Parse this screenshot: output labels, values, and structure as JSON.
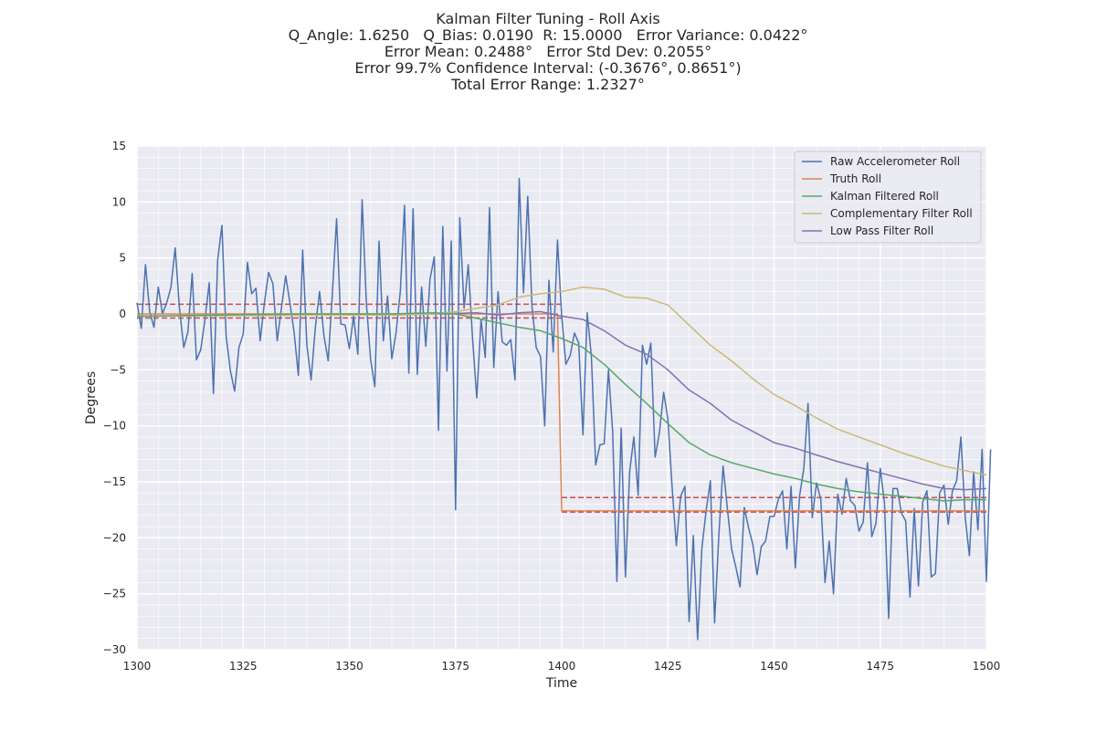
{
  "chart_data": {
    "type": "line",
    "title_lines": [
      "Kalman Filter Tuning - Roll Axis",
      "Q_Angle: 1.6250   Q_Bias: 0.0190  R: 15.0000   Error Variance: 0.0422°",
      "Error Mean: 0.2488°   Error Std Dev: 0.2055°",
      "Error 99.7% Confidence Interval: (-0.3676°, 0.8651°)",
      "Total Error Range: 1.2327°"
    ],
    "xlabel": "Time",
    "ylabel": "Degrees",
    "xlim": [
      1300,
      1500
    ],
    "ylim": [
      -30,
      15
    ],
    "xticks": [
      1300,
      1325,
      1350,
      1375,
      1400,
      1425,
      1450,
      1475,
      1500
    ],
    "yticks": [
      15,
      10,
      5,
      0,
      -5,
      -10,
      -15,
      -20,
      -25,
      -30
    ],
    "grid": true,
    "legend_position": "upper right",
    "series": [
      {
        "name": "Raw Accelerometer Roll",
        "color": "#4c72b0",
        "x_start": 1300,
        "x_step": 1,
        "values": [
          1.0,
          -1.3,
          4.4,
          0.2,
          -1.2,
          2.4,
          0.0,
          1.0,
          2.4,
          5.9,
          0.5,
          -3.0,
          -1.6,
          3.6,
          -4.1,
          -3.2,
          -0.5,
          2.8,
          -7.1,
          4.8,
          7.9,
          -2.0,
          -5.1,
          -6.9,
          -3.0,
          -1.8,
          4.6,
          1.8,
          2.3,
          -2.4,
          1.0,
          3.7,
          2.7,
          -2.4,
          0.5,
          3.4,
          1.0,
          -1.7,
          -5.5,
          5.7,
          -2.8,
          -5.9,
          -1.2,
          2.0,
          -1.9,
          -4.2,
          1.8,
          8.5,
          -0.9,
          -1.0,
          -3.1,
          -0.2,
          -3.6,
          10.2,
          1.0,
          -4.1,
          -6.5,
          6.5,
          -2.4,
          1.6,
          -4.0,
          -1.7,
          2.0,
          9.7,
          -5.3,
          9.4,
          -5.4,
          2.4,
          -2.9,
          3.1,
          5.1,
          -10.4,
          7.8,
          -5.1,
          6.5,
          -17.5,
          8.6,
          0.5,
          4.4,
          -2.2,
          -7.5,
          -0.5,
          -3.9,
          9.5,
          -4.8,
          2.0,
          -2.5,
          -2.8,
          -2.3,
          -5.9,
          12.1,
          1.9,
          10.5,
          0.6,
          -3.0,
          -3.8,
          -10.0,
          3.0,
          -3.4,
          6.6,
          -0.2,
          -4.5,
          -3.7,
          -1.7,
          -2.6,
          -10.8,
          0.1,
          -3.8,
          -13.5,
          -11.7,
          -11.6,
          -5.0,
          -10.5,
          -23.9,
          -10.2,
          -23.5,
          -14.1,
          -11.0,
          -16.2,
          -2.8,
          -4.5,
          -2.6,
          -12.8,
          -10.6,
          -7.0,
          -9.4,
          -15.5,
          -20.7,
          -16.3,
          -15.4,
          -27.5,
          -19.8,
          -29.1,
          -20.9,
          -17.6,
          -14.9,
          -27.6,
          -19.7,
          -13.6,
          -17.3,
          -21.0,
          -22.6,
          -24.4,
          -17.3,
          -19.1,
          -20.6,
          -23.3,
          -20.8,
          -20.3,
          -18.1,
          -18.1,
          -16.6,
          -15.8,
          -21.0,
          -15.4,
          -22.7,
          -16.3,
          -13.8,
          -8.0,
          -18.2,
          -15.1,
          -16.6,
          -24.0,
          -20.3,
          -25.0,
          -16.1,
          -17.9,
          -14.7,
          -16.7,
          -17.1,
          -19.4,
          -18.6,
          -13.3,
          -19.9,
          -18.7,
          -13.8,
          -16.9,
          -27.2,
          -15.6,
          -15.6,
          -17.8,
          -18.5,
          -25.3,
          -17.4,
          -24.3,
          -16.8,
          -15.8,
          -23.5,
          -23.2,
          -16.0,
          -15.3,
          -18.8,
          -15.8,
          -14.9,
          -11.0,
          -18.2,
          -21.6,
          -14.1,
          -19.3,
          -12.1,
          -23.9,
          -12.1
        ]
      },
      {
        "name": "Truth Roll",
        "color": "#dd8452",
        "points": [
          [
            1300,
            0.0
          ],
          [
            1399,
            0.0
          ],
          [
            1400,
            -17.6
          ],
          [
            1500,
            -17.6
          ]
        ]
      },
      {
        "name": "Kalman Filtered Roll",
        "color": "#55a868",
        "points": [
          [
            1300,
            -0.2
          ],
          [
            1320,
            -0.1
          ],
          [
            1340,
            0.0
          ],
          [
            1360,
            0.0
          ],
          [
            1370,
            0.1
          ],
          [
            1375,
            0.0
          ],
          [
            1380,
            -0.4
          ],
          [
            1385,
            -0.8
          ],
          [
            1390,
            -1.2
          ],
          [
            1395,
            -1.5
          ],
          [
            1400,
            -2.2
          ],
          [
            1405,
            -3.0
          ],
          [
            1410,
            -4.5
          ],
          [
            1415,
            -6.3
          ],
          [
            1420,
            -8.0
          ],
          [
            1425,
            -9.8
          ],
          [
            1430,
            -11.5
          ],
          [
            1435,
            -12.6
          ],
          [
            1440,
            -13.3
          ],
          [
            1445,
            -13.8
          ],
          [
            1450,
            -14.3
          ],
          [
            1455,
            -14.7
          ],
          [
            1460,
            -15.2
          ],
          [
            1465,
            -15.6
          ],
          [
            1470,
            -15.9
          ],
          [
            1475,
            -16.1
          ],
          [
            1480,
            -16.3
          ],
          [
            1485,
            -16.5
          ],
          [
            1490,
            -16.7
          ],
          [
            1495,
            -16.6
          ],
          [
            1500,
            -16.6
          ]
        ]
      },
      {
        "name": "Complementary Filter Roll",
        "color": "#ccb974",
        "points": [
          [
            1300,
            -0.2
          ],
          [
            1340,
            -0.1
          ],
          [
            1360,
            -0.1
          ],
          [
            1370,
            0.0
          ],
          [
            1375,
            0.2
          ],
          [
            1380,
            0.5
          ],
          [
            1385,
            0.8
          ],
          [
            1390,
            1.5
          ],
          [
            1395,
            1.8
          ],
          [
            1400,
            2.0
          ],
          [
            1405,
            2.4
          ],
          [
            1410,
            2.2
          ],
          [
            1415,
            1.5
          ],
          [
            1420,
            1.4
          ],
          [
            1425,
            0.8
          ],
          [
            1430,
            -1.0
          ],
          [
            1435,
            -2.8
          ],
          [
            1440,
            -4.2
          ],
          [
            1445,
            -5.8
          ],
          [
            1450,
            -7.2
          ],
          [
            1455,
            -8.2
          ],
          [
            1460,
            -9.3
          ],
          [
            1465,
            -10.3
          ],
          [
            1470,
            -11.0
          ],
          [
            1475,
            -11.7
          ],
          [
            1480,
            -12.4
          ],
          [
            1485,
            -13.0
          ],
          [
            1490,
            -13.6
          ],
          [
            1495,
            -14.0
          ],
          [
            1500,
            -14.4
          ]
        ]
      },
      {
        "name": "Low Pass Filter Roll",
        "color": "#8172b3",
        "points": [
          [
            1300,
            -0.2
          ],
          [
            1340,
            -0.1
          ],
          [
            1360,
            -0.1
          ],
          [
            1370,
            0.0
          ],
          [
            1380,
            0.1
          ],
          [
            1385,
            -0.1
          ],
          [
            1390,
            0.1
          ],
          [
            1395,
            0.2
          ],
          [
            1400,
            -0.2
          ],
          [
            1405,
            -0.5
          ],
          [
            1410,
            -1.5
          ],
          [
            1415,
            -2.8
          ],
          [
            1420,
            -3.6
          ],
          [
            1425,
            -5.0
          ],
          [
            1430,
            -6.8
          ],
          [
            1435,
            -8.0
          ],
          [
            1440,
            -9.5
          ],
          [
            1445,
            -10.5
          ],
          [
            1450,
            -11.5
          ],
          [
            1455,
            -12.0
          ],
          [
            1460,
            -12.6
          ],
          [
            1465,
            -13.2
          ],
          [
            1470,
            -13.7
          ],
          [
            1475,
            -14.2
          ],
          [
            1480,
            -14.7
          ],
          [
            1485,
            -15.2
          ],
          [
            1490,
            -15.6
          ],
          [
            1495,
            -15.7
          ],
          [
            1500,
            -15.6
          ]
        ]
      }
    ],
    "reference_lines": [
      {
        "color": "#c44e52",
        "style": "dashed",
        "points": [
          [
            1300,
            0.8651
          ],
          [
            1400,
            0.8651
          ]
        ]
      },
      {
        "color": "#c44e52",
        "style": "dashed",
        "points": [
          [
            1300,
            -0.3676
          ],
          [
            1400,
            -0.3676
          ]
        ]
      },
      {
        "color": "#c44e52",
        "style": "dashed",
        "points": [
          [
            1400,
            -16.4
          ],
          [
            1500,
            -16.4
          ]
        ]
      },
      {
        "color": "#c44e52",
        "style": "dashed",
        "points": [
          [
            1400,
            -17.7
          ],
          [
            1500,
            -17.7
          ]
        ]
      }
    ]
  }
}
